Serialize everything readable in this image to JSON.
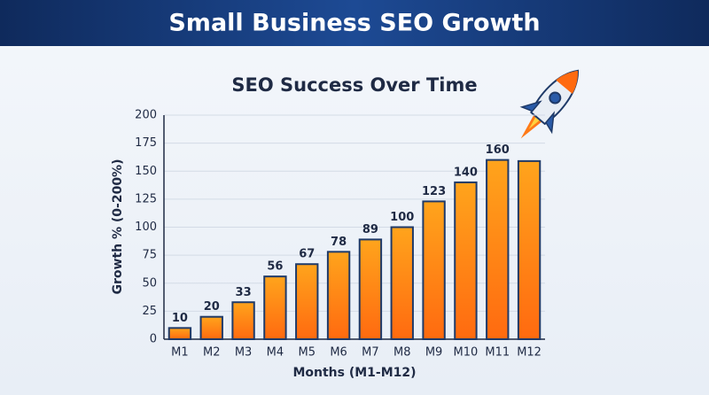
{
  "header": {
    "title": "Small Business SEO Growth"
  },
  "chart_data": {
    "type": "bar",
    "title": "SEO Success Over Time",
    "x_label": "Months (M1-M12)",
    "y_label": "Growth % (0-200%)",
    "categories": [
      "M1",
      "M2",
      "M3",
      "M4",
      "M5",
      "M6",
      "M7",
      "M8",
      "M9",
      "M10",
      "M11",
      "M12"
    ],
    "values": [
      10,
      20,
      33,
      56,
      67,
      78,
      89,
      100,
      123,
      140,
      160,
      159
    ],
    "value_labels": [
      "10",
      "20",
      "33",
      "56",
      "67",
      "78",
      "89",
      "100",
      "123",
      "140",
      "160",
      null
    ],
    "color": "#f7931e",
    "edge_color": "#1f3a68",
    "ylim": [
      0,
      200
    ],
    "yticks": [
      0,
      25,
      50,
      75,
      100,
      125,
      150,
      175,
      200
    ],
    "grid": true
  }
}
